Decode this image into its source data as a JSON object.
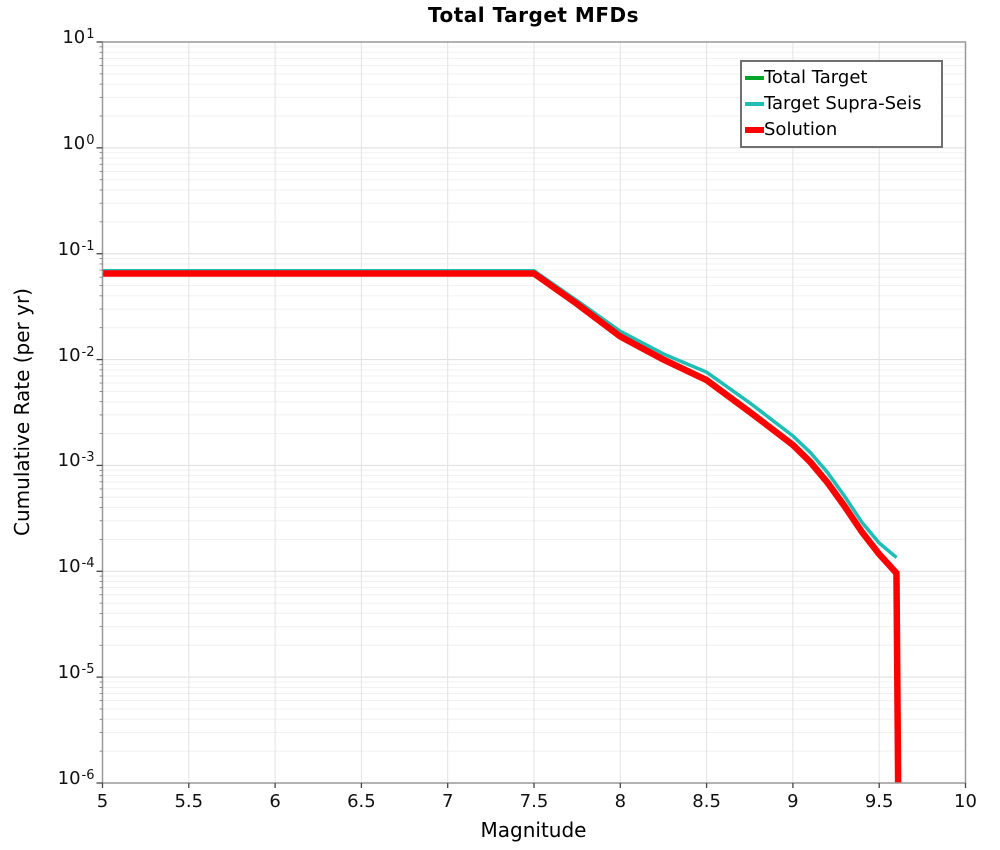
{
  "title": "Total Target MFDs",
  "axes": {
    "xlabel": "Magnitude",
    "ylabel": "Cumulative Rate (per yr)"
  },
  "x_ticks": [
    {
      "value": 5,
      "label": "5"
    },
    {
      "value": 5.5,
      "label": "5.5"
    },
    {
      "value": 6,
      "label": "6"
    },
    {
      "value": 6.5,
      "label": "6.5"
    },
    {
      "value": 7,
      "label": "7"
    },
    {
      "value": 7.5,
      "label": "7.5"
    },
    {
      "value": 8,
      "label": "8"
    },
    {
      "value": 8.5,
      "label": "8.5"
    },
    {
      "value": 9,
      "label": "9"
    },
    {
      "value": 9.5,
      "label": "9.5"
    },
    {
      "value": 10,
      "label": "10"
    }
  ],
  "y_ticks": [
    {
      "base": "10",
      "exp": "1"
    },
    {
      "base": "10",
      "exp": "0"
    },
    {
      "base": "10",
      "exp": "-1"
    },
    {
      "base": "10",
      "exp": "-2"
    },
    {
      "base": "10",
      "exp": "-3"
    },
    {
      "base": "10",
      "exp": "-4"
    },
    {
      "base": "10",
      "exp": "-5"
    },
    {
      "base": "10",
      "exp": "-6"
    }
  ],
  "legend": {
    "position": "top-right",
    "items": [
      {
        "label": "Total Target",
        "color": "#00a52c",
        "chip_height": 4
      },
      {
        "label": "Target Supra-Seis",
        "color": "#1ebdb5",
        "chip_height": 4
      },
      {
        "label": "Solution",
        "color": "#fe0000",
        "chip_height": 6
      }
    ]
  },
  "chart_data": {
    "type": "line",
    "title": "Total Target MFDs",
    "xlabel": "Magnitude",
    "ylabel": "Cumulative Rate (per yr)",
    "x_axis": {
      "scale": "linear",
      "min": 5,
      "max": 10,
      "tick_step": 0.5
    },
    "y_axis": {
      "scale": "log",
      "min": 1e-06,
      "max": 10
    },
    "grid": true,
    "legend_position": "top-right",
    "series": [
      {
        "name": "Total Target",
        "color": "#00a52c",
        "width": 3,
        "points": [
          [
            5.0,
            0.069
          ],
          [
            7.5,
            0.069
          ],
          [
            7.75,
            0.036
          ],
          [
            8.0,
            0.0185
          ],
          [
            8.25,
            0.0113
          ],
          [
            8.5,
            0.0076
          ],
          [
            8.75,
            0.0039
          ],
          [
            9.0,
            0.0019
          ],
          [
            9.1,
            0.00133
          ],
          [
            9.2,
            0.00086
          ],
          [
            9.3,
            0.00051
          ],
          [
            9.4,
            0.00029
          ],
          [
            9.5,
            0.000185
          ],
          [
            9.6,
            0.000135
          ]
        ]
      },
      {
        "name": "Target Supra-Seis",
        "color": "#1ebdb5",
        "width": 3.5,
        "points": [
          [
            5.0,
            0.069
          ],
          [
            7.5,
            0.069
          ],
          [
            7.75,
            0.036
          ],
          [
            8.0,
            0.0185
          ],
          [
            8.25,
            0.0113
          ],
          [
            8.5,
            0.0076
          ],
          [
            8.75,
            0.0039
          ],
          [
            9.0,
            0.0019
          ],
          [
            9.1,
            0.00133
          ],
          [
            9.2,
            0.00086
          ],
          [
            9.3,
            0.00051
          ],
          [
            9.4,
            0.00029
          ],
          [
            9.5,
            0.000185
          ],
          [
            9.6,
            0.000135
          ]
        ]
      },
      {
        "name": "Solution",
        "color": "#fe0000",
        "width": 6.5,
        "points": [
          [
            5.0,
            0.065
          ],
          [
            7.5,
            0.065
          ],
          [
            7.75,
            0.0335
          ],
          [
            8.0,
            0.0165
          ],
          [
            8.25,
            0.01
          ],
          [
            8.5,
            0.0064
          ],
          [
            8.75,
            0.0032
          ],
          [
            9.0,
            0.00156
          ],
          [
            9.1,
            0.00108
          ],
          [
            9.2,
            0.00069
          ],
          [
            9.3,
            0.00041
          ],
          [
            9.4,
            0.000235
          ],
          [
            9.5,
            0.000145
          ],
          [
            9.6,
            9.6e-05
          ],
          [
            9.61,
            8.5e-07
          ]
        ]
      }
    ]
  }
}
